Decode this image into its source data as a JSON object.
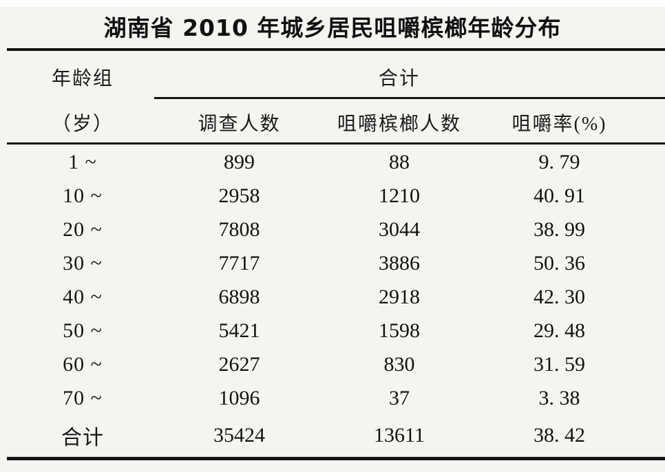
{
  "title": "湖南省 2010 年城乡居民咀嚼槟榔年龄分布",
  "table": {
    "age_header_line1": "年龄组",
    "age_header_line2": "（岁）",
    "group_header": "合计",
    "sub_headers": {
      "surveyed": "调查人数",
      "chewers": "咀嚼槟榔人数",
      "rate": "咀嚼率(%)"
    },
    "rows": [
      {
        "age": "1 ~",
        "surveyed": "899",
        "chewers": "88",
        "rate": "9. 79"
      },
      {
        "age": "10 ~",
        "surveyed": "2958",
        "chewers": "1210",
        "rate": "40. 91"
      },
      {
        "age": "20 ~",
        "surveyed": "7808",
        "chewers": "3044",
        "rate": "38. 99"
      },
      {
        "age": "30 ~",
        "surveyed": "7717",
        "chewers": "3886",
        "rate": "50. 36"
      },
      {
        "age": "40 ~",
        "surveyed": "6898",
        "chewers": "2918",
        "rate": "42. 30"
      },
      {
        "age": "50 ~",
        "surveyed": "5421",
        "chewers": "1598",
        "rate": "29. 48"
      },
      {
        "age": "60 ~",
        "surveyed": "2627",
        "chewers": "830",
        "rate": "31. 59"
      },
      {
        "age": "70 ~",
        "surveyed": "1096",
        "chewers": "37",
        "rate": "3. 38"
      },
      {
        "age": "合计",
        "surveyed": "35424",
        "chewers": "13611",
        "rate": "38. 42"
      }
    ]
  },
  "colors": {
    "background": "#f5f4f1",
    "rule": "#141414",
    "text": "#161616"
  }
}
